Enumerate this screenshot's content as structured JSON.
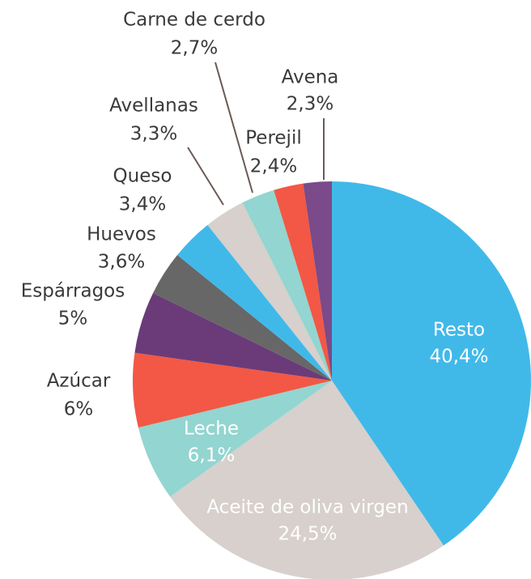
{
  "chart_data": {
    "type": "pie",
    "categories": [
      "Resto",
      "Aceite de oliva virgen",
      "Leche",
      "Azúcar",
      "Espárragos",
      "Huevos",
      "Queso",
      "Avellanas",
      "Carne de cerdo",
      "Perejil",
      "Avena"
    ],
    "values": [
      40.4,
      24.5,
      6.1,
      6,
      5,
      3.6,
      3.4,
      3.3,
      2.7,
      2.4,
      2.3
    ],
    "value_labels": [
      "40,4%",
      "24,5%",
      "6,1%",
      "6%",
      "5%",
      "3,6%",
      "3,4%",
      "3,3%",
      "2,7%",
      "2,4%",
      "2,3%"
    ],
    "colors": [
      "#40b9e9",
      "#d7d0cc",
      "#93d5d0",
      "#f25845",
      "#6b3b79",
      "#676767",
      "#40b9e9",
      "#d7d0cc",
      "#93d5d0",
      "#f25845",
      "#7a4a8a"
    ]
  }
}
